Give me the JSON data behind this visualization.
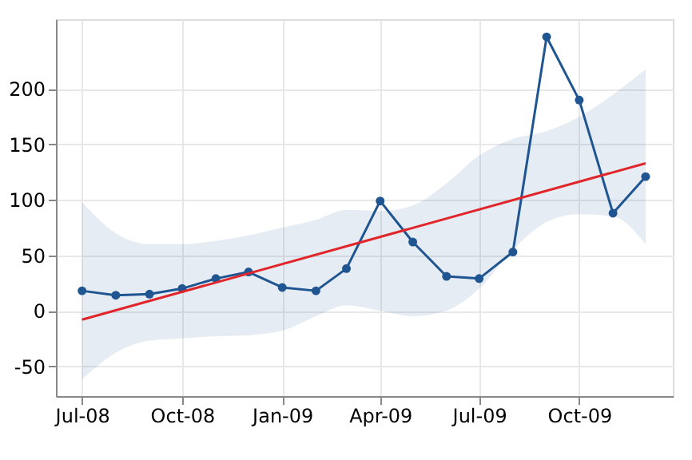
{
  "chart_data": {
    "type": "line",
    "x": [
      "2008-07-01",
      "2008-08-01",
      "2008-09-01",
      "2008-10-01",
      "2008-11-01",
      "2008-12-01",
      "2009-01-01",
      "2009-02-01",
      "2009-03-01",
      "2009-04-01",
      "2009-05-01",
      "2009-06-01",
      "2009-07-01",
      "2009-08-01",
      "2009-09-01",
      "2009-10-01",
      "2009-11-01",
      "2009-12-01"
    ],
    "series": [
      {
        "color": "#1f5591",
        "marker": "circle",
        "values": [
          18,
          14,
          15,
          20,
          29,
          35,
          21,
          18,
          38,
          99,
          62,
          31,
          29,
          53,
          247,
          190,
          88,
          121
        ],
        "lower": [
          -62,
          -38,
          -27,
          -25,
          -23,
          -22,
          -18,
          -5,
          5,
          0,
          -5,
          0,
          20,
          55,
          80,
          87,
          85,
          60
        ],
        "upper": [
          98,
          70,
          60,
          60,
          63,
          68,
          75,
          82,
          91,
          90,
          95,
          115,
          140,
          155,
          162,
          175,
          195,
          218
        ]
      },
      {
        "type": "line",
        "color": "#e0262b",
        "marker": "none",
        "x": [
          "2008-07-01",
          "2009-12-01"
        ],
        "values": [
          -8,
          133
        ]
      }
    ],
    "xlim": [
      "2008-06-07",
      "2009-12-26"
    ],
    "xticks": [
      {
        "value": "2008-07-01",
        "label": "Jul-08"
      },
      {
        "value": "2008-10-01",
        "label": "Oct-08"
      },
      {
        "value": "2009-01-01",
        "label": "Jan-09"
      },
      {
        "value": "2009-04-01",
        "label": "Apr-09"
      },
      {
        "value": "2009-07-01",
        "label": "Jul-09"
      },
      {
        "value": "2009-10-01",
        "label": "Oct-09"
      }
    ],
    "ylim": [
      -77,
      263
    ],
    "yticks": [
      -50,
      0,
      50,
      100,
      150,
      200
    ],
    "grid": true
  }
}
